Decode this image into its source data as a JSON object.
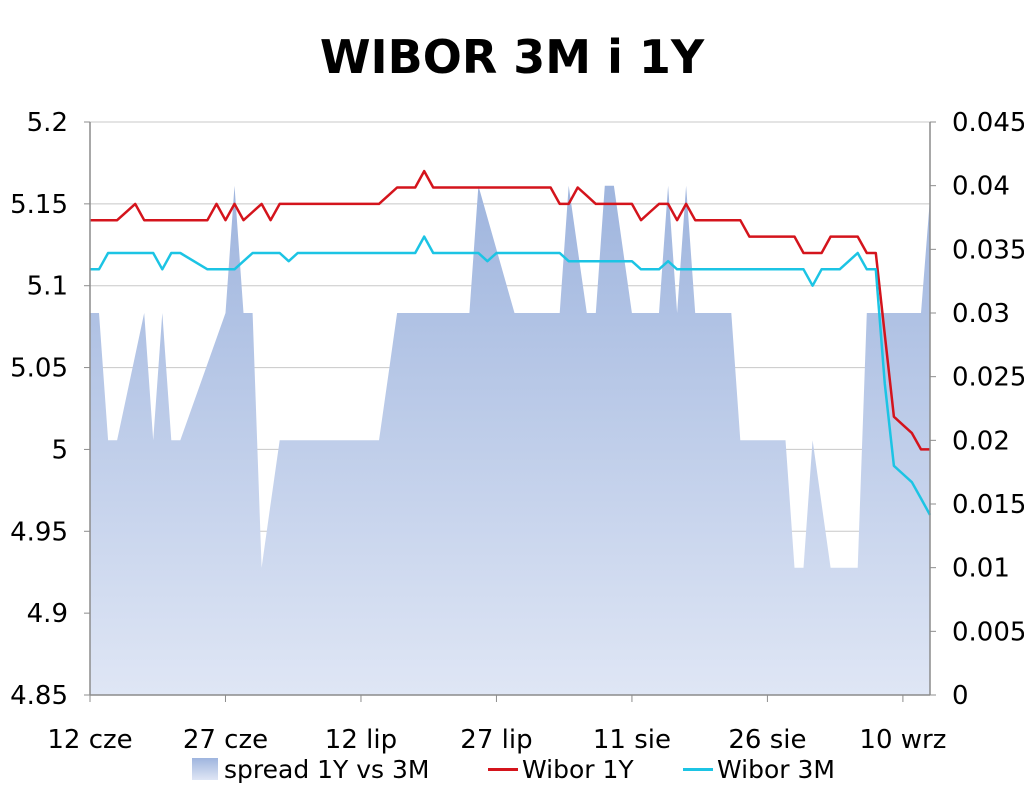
{
  "chart_data": {
    "type": "line",
    "title": "WIBOR 3M i 1Y",
    "x_tick_labels": [
      "12 cze",
      "27 cze",
      "12 lip",
      "27 lip",
      "11 sie",
      "26 sie",
      "10 wrz"
    ],
    "x_tick_days": [
      0,
      15,
      30,
      45,
      60,
      75,
      90
    ],
    "x_range_days": [
      0,
      93
    ],
    "y_left": {
      "min": 4.85,
      "max": 5.2,
      "step": 0.05,
      "tick_labels": [
        "4.85",
        "4.9",
        "4.95",
        "5",
        "5.05",
        "5.1",
        "5.15",
        "5.2"
      ]
    },
    "y_right": {
      "min": 0,
      "max": 0.045,
      "step": 0.005,
      "tick_labels": [
        "0",
        "0.005",
        "0.01",
        "0.015",
        "0.02",
        "0.025",
        "0.03",
        "0.035",
        "0.04",
        "0.045"
      ]
    },
    "grid": "horizontal",
    "legend_position": "bottom",
    "colors": {
      "spread_top": "#9fb5de",
      "spread_bottom": "#dfe6f5",
      "wibor_1y": "#d4141c",
      "wibor_3m": "#1cc4e4",
      "grid": "#c8c8c8",
      "axis": "#8c8c8c"
    },
    "series": [
      {
        "name": "spread 1Y vs 3M",
        "type": "area",
        "axis": "right",
        "x": [
          0,
          1,
          2,
          3,
          6,
          7,
          8,
          9,
          10,
          15,
          16,
          17,
          18,
          19,
          20,
          21,
          26,
          32,
          33,
          34,
          35,
          36,
          37,
          38,
          39,
          40,
          41,
          42,
          43,
          47,
          48,
          49,
          50,
          51,
          52,
          53,
          54,
          55,
          56,
          57,
          58,
          59,
          60,
          61,
          62,
          63,
          64,
          65,
          66,
          67,
          68,
          69,
          70,
          71,
          72,
          73,
          74,
          75,
          76,
          77,
          78,
          79,
          80,
          81,
          82,
          83,
          84,
          85,
          86,
          87,
          88,
          89,
          90,
          91,
          92,
          93
        ],
        "values": [
          0.03,
          0.03,
          0.02,
          0.02,
          0.03,
          0.02,
          0.03,
          0.02,
          0.02,
          0.03,
          0.04,
          0.03,
          0.03,
          0.01,
          0.015,
          0.02,
          0.02,
          0.02,
          0.025,
          0.03,
          0.03,
          0.03,
          0.03,
          0.03,
          0.03,
          0.03,
          0.03,
          0.03,
          0.04,
          0.03,
          0.03,
          0.03,
          0.03,
          0.03,
          0.03,
          0.04,
          0.035,
          0.03,
          0.03,
          0.04,
          0.04,
          0.035,
          0.03,
          0.03,
          0.03,
          0.03,
          0.04,
          0.03,
          0.04,
          0.03,
          0.03,
          0.03,
          0.03,
          0.03,
          0.02,
          0.02,
          0.02,
          0.02,
          0.02,
          0.02,
          0.01,
          0.01,
          0.02,
          0.015,
          0.01,
          0.01,
          0.01,
          0.01,
          0.03,
          0.03,
          0.03,
          0.03,
          0.03,
          0.03,
          0.03,
          0.039
        ]
      },
      {
        "name": "Wibor 1Y",
        "type": "line",
        "axis": "left",
        "x": [
          0,
          1,
          2,
          3,
          5,
          6,
          7,
          8,
          9,
          10,
          13,
          14,
          15,
          16,
          17,
          18,
          19,
          20,
          21,
          22,
          23,
          24,
          25,
          26,
          27,
          28,
          29,
          30,
          31,
          32,
          33,
          34,
          35,
          36,
          37,
          38,
          39,
          40,
          41,
          42,
          43,
          44,
          45,
          46,
          47,
          48,
          49,
          50,
          51,
          52,
          53,
          54,
          55,
          56,
          57,
          58,
          59,
          60,
          61,
          62,
          63,
          64,
          65,
          66,
          67,
          68,
          69,
          70,
          71,
          72,
          73,
          74,
          75,
          76,
          77,
          78,
          79,
          80,
          81,
          82,
          83,
          84,
          85,
          86,
          87,
          88,
          89,
          90,
          91,
          92,
          93
        ],
        "values": [
          5.14,
          5.14,
          5.14,
          5.14,
          5.15,
          5.14,
          5.14,
          5.14,
          5.14,
          5.14,
          5.14,
          5.15,
          5.14,
          5.15,
          5.14,
          5.145,
          5.15,
          5.14,
          5.15,
          5.15,
          5.15,
          5.15,
          5.15,
          5.15,
          5.15,
          5.15,
          5.15,
          5.15,
          5.15,
          5.15,
          5.155,
          5.16,
          5.16,
          5.16,
          5.17,
          5.16,
          5.16,
          5.16,
          5.16,
          5.16,
          5.16,
          5.16,
          5.16,
          5.16,
          5.16,
          5.16,
          5.16,
          5.16,
          5.16,
          5.15,
          5.15,
          5.16,
          5.155,
          5.15,
          5.15,
          5.15,
          5.15,
          5.15,
          5.14,
          5.145,
          5.15,
          5.15,
          5.14,
          5.15,
          5.14,
          5.14,
          5.14,
          5.14,
          5.14,
          5.14,
          5.13,
          5.13,
          5.13,
          5.13,
          5.13,
          5.13,
          5.12,
          5.12,
          5.12,
          5.13,
          5.13,
          5.13,
          5.13,
          5.12,
          5.12,
          5.07,
          5.02,
          5.015,
          5.01,
          5.0,
          5.0
        ]
      },
      {
        "name": "Wibor 3M",
        "type": "line",
        "axis": "left",
        "x": [
          0,
          1,
          2,
          3,
          5,
          6,
          7,
          8,
          9,
          10,
          13,
          14,
          15,
          16,
          17,
          18,
          19,
          20,
          21,
          22,
          23,
          24,
          25,
          26,
          27,
          28,
          29,
          30,
          31,
          32,
          33,
          34,
          35,
          36,
          37,
          38,
          39,
          40,
          41,
          42,
          43,
          44,
          45,
          46,
          47,
          48,
          49,
          50,
          51,
          52,
          53,
          54,
          55,
          56,
          57,
          58,
          59,
          60,
          61,
          62,
          63,
          64,
          65,
          66,
          67,
          68,
          69,
          70,
          71,
          72,
          73,
          74,
          75,
          76,
          77,
          78,
          79,
          80,
          81,
          82,
          83,
          84,
          85,
          86,
          87,
          88,
          89,
          90,
          91,
          92,
          93
        ],
        "values": [
          5.11,
          5.11,
          5.12,
          5.12,
          5.12,
          5.12,
          5.12,
          5.11,
          5.12,
          5.12,
          5.11,
          5.11,
          5.11,
          5.11,
          5.115,
          5.12,
          5.12,
          5.12,
          5.12,
          5.115,
          5.12,
          5.12,
          5.12,
          5.12,
          5.12,
          5.12,
          5.12,
          5.12,
          5.12,
          5.12,
          5.12,
          5.12,
          5.12,
          5.12,
          5.13,
          5.12,
          5.12,
          5.12,
          5.12,
          5.12,
          5.12,
          5.115,
          5.12,
          5.12,
          5.12,
          5.12,
          5.12,
          5.12,
          5.12,
          5.12,
          5.115,
          5.115,
          5.115,
          5.115,
          5.115,
          5.115,
          5.115,
          5.115,
          5.11,
          5.11,
          5.11,
          5.115,
          5.11,
          5.11,
          5.11,
          5.11,
          5.11,
          5.11,
          5.11,
          5.11,
          5.11,
          5.11,
          5.11,
          5.11,
          5.11,
          5.11,
          5.11,
          5.1,
          5.11,
          5.11,
          5.11,
          5.115,
          5.12,
          5.11,
          5.11,
          5.04,
          4.99,
          4.985,
          4.98,
          4.97,
          4.96
        ]
      }
    ]
  },
  "legend": [
    {
      "label": "spread 1Y vs 3M"
    },
    {
      "label": "Wibor 1Y"
    },
    {
      "label": "Wibor 3M"
    }
  ]
}
